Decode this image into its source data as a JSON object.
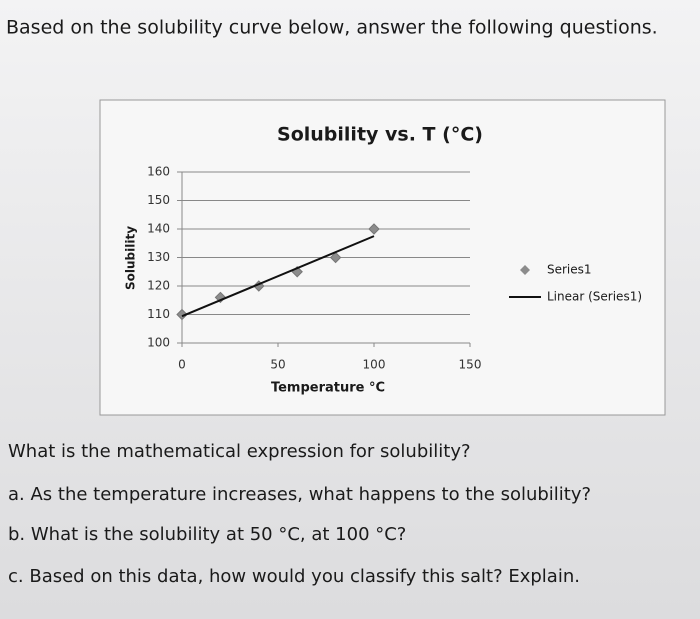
{
  "heading": "Based on the solubility curve below, answer the following questions.",
  "chart_data": {
    "type": "scatter",
    "title": "Solubility vs. T (°C)",
    "x_label": "Temperature  °C",
    "y_label": "Solubility",
    "xlim": [
      0,
      150
    ],
    "xticks": [
      0,
      50,
      100,
      150
    ],
    "ylim": [
      100,
      160
    ],
    "yticks": [
      100,
      110,
      120,
      130,
      140,
      150,
      160
    ],
    "grid": true,
    "legend": "right",
    "series": [
      {
        "name": "Series1",
        "color": "#8c8c8c",
        "style": "markers",
        "x": [
          0,
          20,
          40,
          60,
          80,
          100
        ],
        "values": [
          110,
          116,
          120,
          125,
          130,
          140
        ]
      },
      {
        "name": "Linear (Series1)",
        "color": "#111111",
        "style": "line",
        "x": [
          0,
          100
        ],
        "values": [
          109.4,
          137.5
        ]
      }
    ]
  },
  "questions": [
    "What is the mathematical expression for solubility?",
    "a. As the temperature increases, what happens to the solubility?",
    "b. What is the solubility at 50 °C, at 100 °C?",
    "c. Based on this data, how would you classify this salt?  Explain."
  ]
}
